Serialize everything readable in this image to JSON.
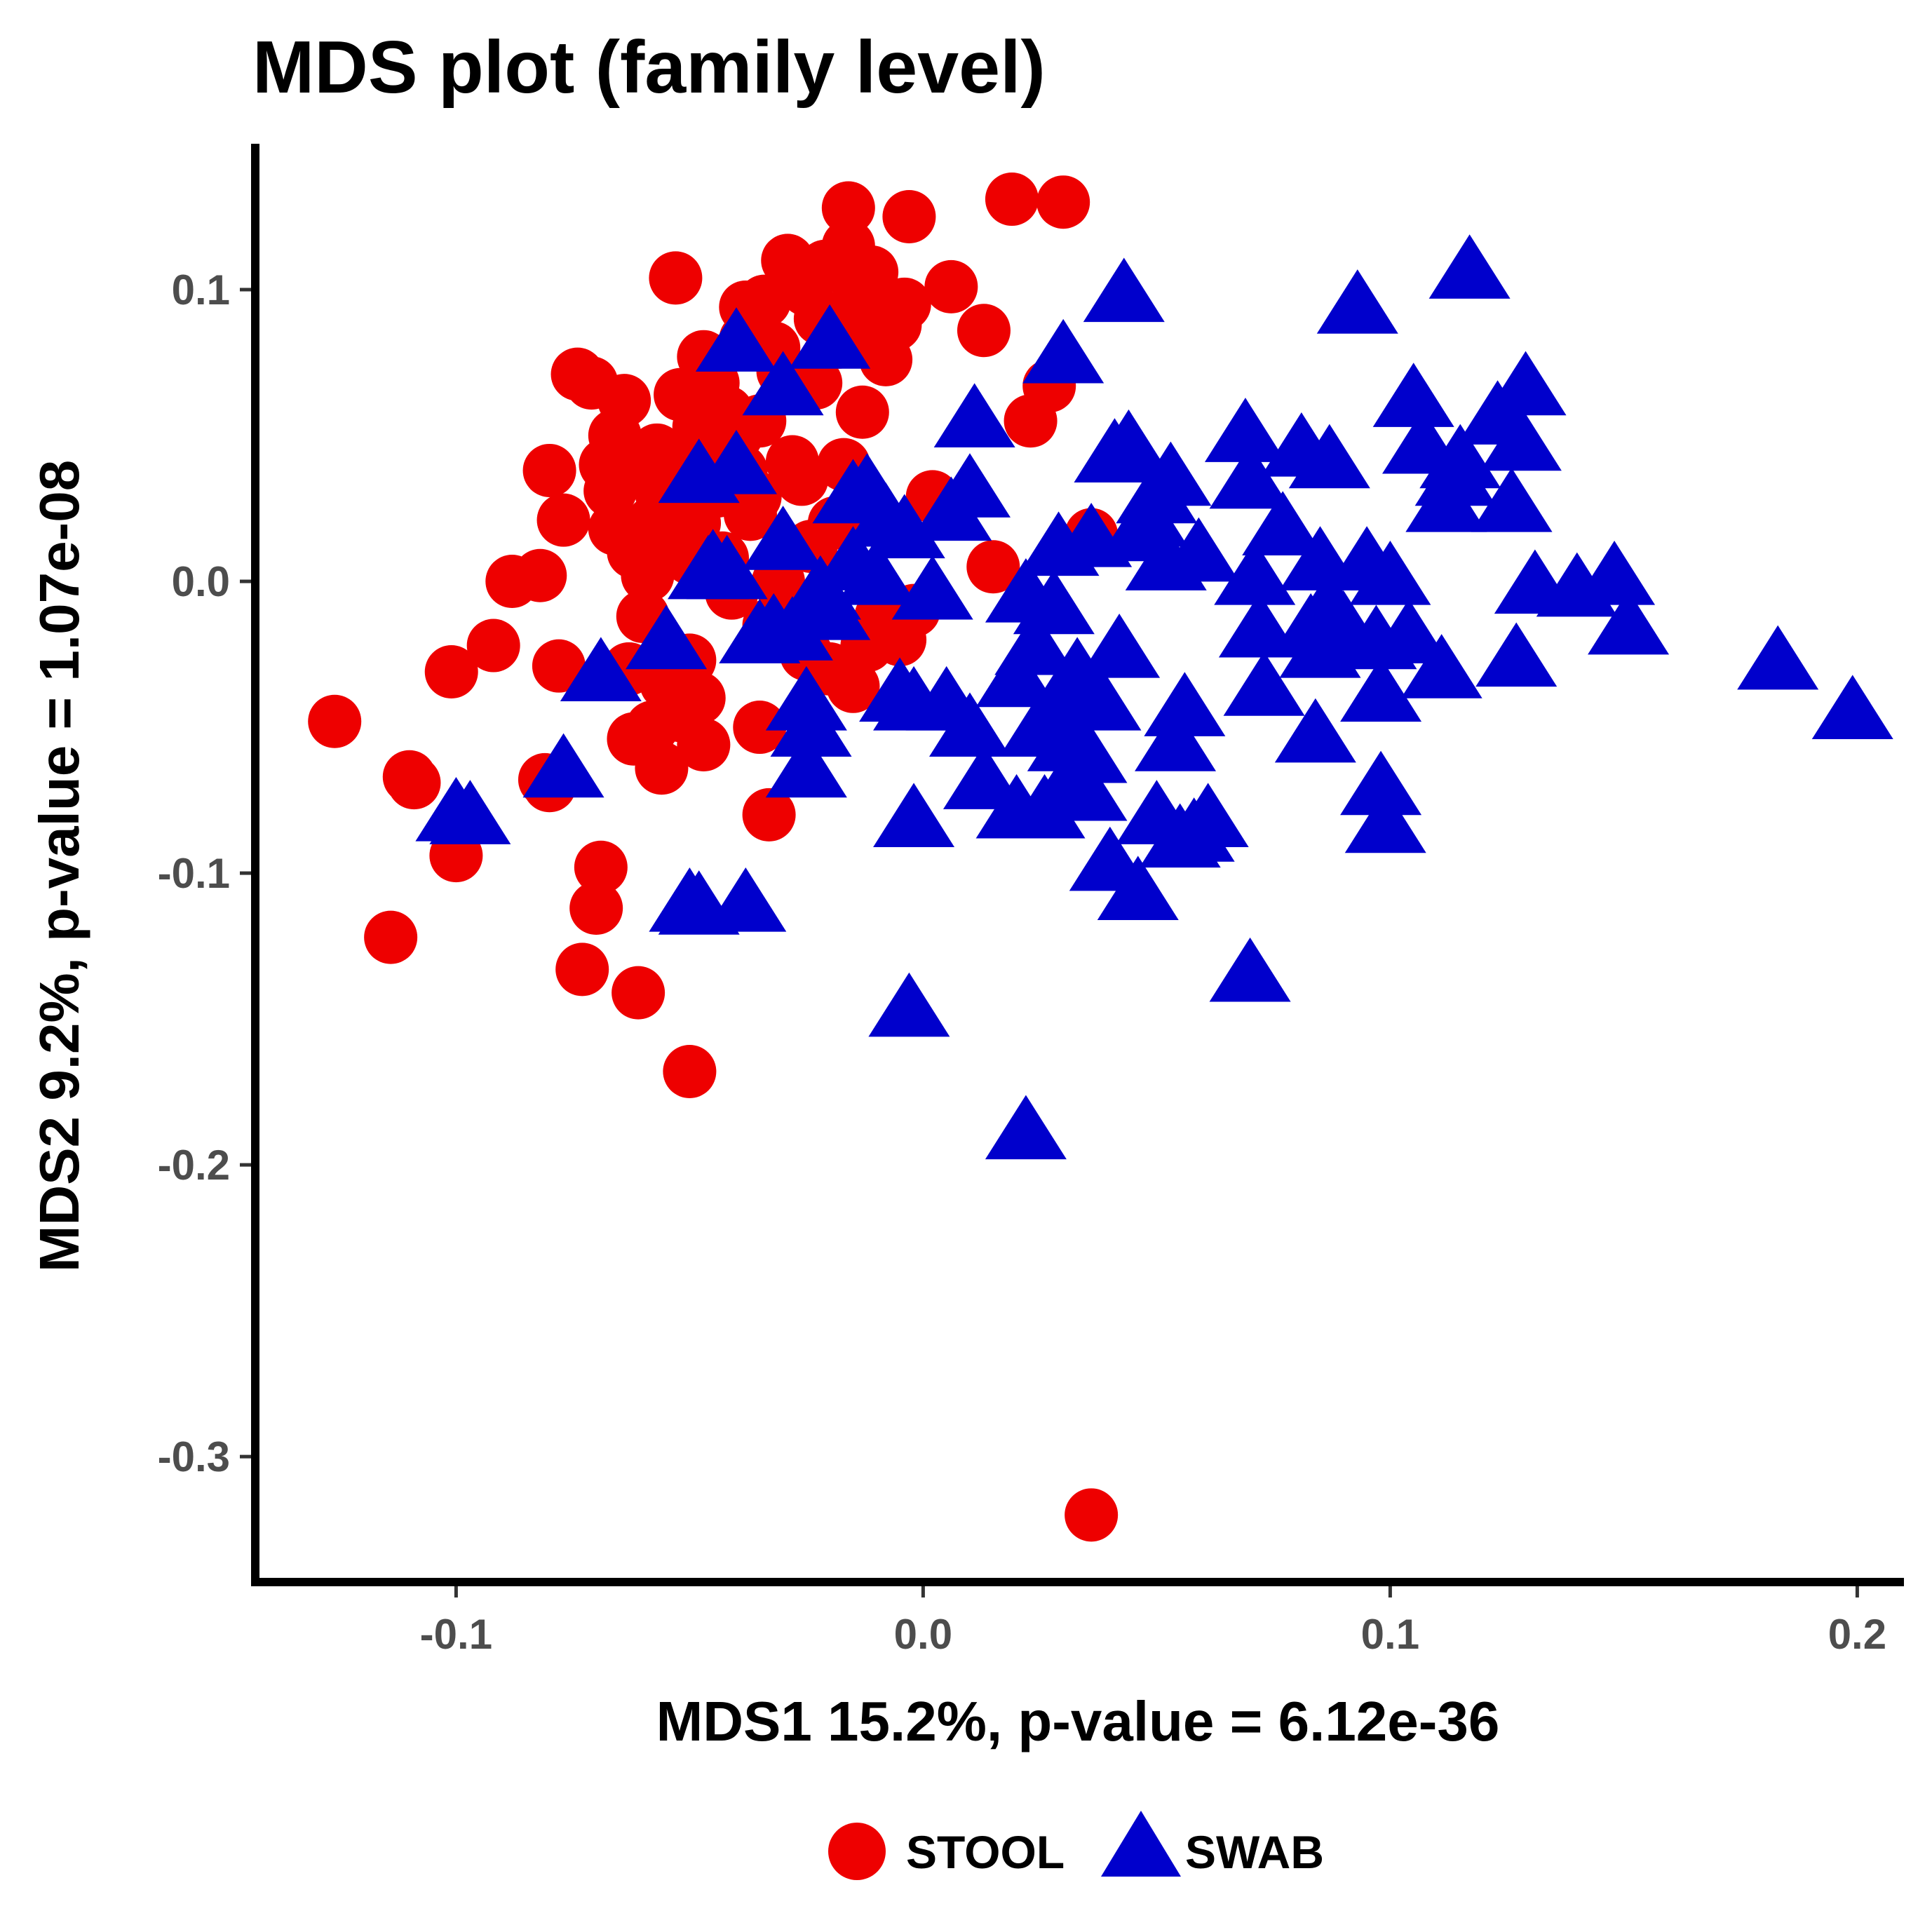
{
  "chart_data": {
    "type": "scatter",
    "title": "MDS plot (family level)",
    "xlabel": "MDS1 15.2%, p-value = 6.12e-36",
    "ylabel": "MDS2 9.2%, p-value = 1.07e-08",
    "xlim": [
      -0.143,
      0.21
    ],
    "ylim": [
      -0.343,
      0.15
    ],
    "x_ticks": [
      -0.1,
      0.0,
      0.1,
      0.2
    ],
    "x_tick_labels": [
      "-0.1",
      "0.0",
      "0.1",
      "0.2"
    ],
    "y_ticks": [
      -0.3,
      -0.2,
      -0.1,
      0.0,
      0.1
    ],
    "y_tick_labels": [
      "-0.3",
      "-0.2",
      "-0.1",
      "0.0",
      "0.1"
    ],
    "grid": false,
    "legend_position": "bottom",
    "series": [
      {
        "name": "STOOL",
        "shape": "circle",
        "color": "#ee0000",
        "points": [
          [
            -0.126,
            -0.048
          ],
          [
            -0.114,
            -0.122
          ],
          [
            -0.109,
            -0.069
          ],
          [
            -0.11,
            -0.067
          ],
          [
            -0.101,
            -0.031
          ],
          [
            -0.1,
            -0.094
          ],
          [
            -0.092,
            -0.022
          ],
          [
            -0.088,
            0.0
          ],
          [
            -0.082,
            0.002
          ],
          [
            -0.081,
            -0.068
          ],
          [
            -0.08,
            -0.07
          ],
          [
            -0.08,
            0.038
          ],
          [
            -0.078,
            -0.029
          ],
          [
            -0.077,
            0.021
          ],
          [
            -0.074,
            0.071
          ],
          [
            -0.073,
            -0.133
          ],
          [
            -0.071,
            0.068
          ],
          [
            -0.07,
            -0.112
          ],
          [
            -0.069,
            -0.098
          ],
          [
            -0.068,
            0.04
          ],
          [
            -0.067,
            0.031
          ],
          [
            -0.066,
            0.018
          ],
          [
            -0.066,
            0.05
          ],
          [
            -0.064,
            0.062
          ],
          [
            -0.063,
            -0.03
          ],
          [
            -0.062,
            -0.054
          ],
          [
            -0.062,
            0.01
          ],
          [
            -0.061,
            -0.141
          ],
          [
            -0.06,
            0.038
          ],
          [
            -0.06,
            -0.012
          ],
          [
            -0.059,
            0.002
          ],
          [
            -0.058,
            -0.05
          ],
          [
            -0.058,
            0.02
          ],
          [
            -0.057,
            0.045
          ],
          [
            -0.056,
            -0.064
          ],
          [
            -0.056,
            0.03
          ],
          [
            -0.055,
            -0.035
          ],
          [
            -0.054,
            0.012
          ],
          [
            -0.053,
            0.104
          ],
          [
            -0.052,
            -0.046
          ],
          [
            -0.052,
            0.064
          ],
          [
            -0.051,
            0.034
          ],
          [
            -0.05,
            -0.027
          ],
          [
            -0.05,
            0.008
          ],
          [
            -0.05,
            -0.168
          ],
          [
            -0.049,
            0.02
          ],
          [
            -0.048,
            -0.04
          ],
          [
            -0.048,
            0.053
          ],
          [
            -0.047,
            -0.056
          ],
          [
            -0.047,
            0.077
          ],
          [
            -0.046,
            0.046
          ],
          [
            -0.045,
            0.068
          ],
          [
            -0.044,
            0.031
          ],
          [
            -0.043,
            0.008
          ],
          [
            -0.042,
            0.058
          ],
          [
            -0.041,
            -0.004
          ],
          [
            -0.04,
            0.05
          ],
          [
            -0.039,
            0.038
          ],
          [
            -0.038,
            0.083
          ],
          [
            -0.038,
            0.094
          ],
          [
            -0.037,
            0.023
          ],
          [
            -0.036,
            0.029
          ],
          [
            -0.035,
            -0.05
          ],
          [
            -0.035,
            0.055
          ],
          [
            -0.034,
            0.096
          ],
          [
            -0.033,
            -0.08
          ],
          [
            -0.033,
            -0.015
          ],
          [
            -0.032,
            0.08
          ],
          [
            -0.031,
            0.0
          ],
          [
            -0.03,
            0.072
          ],
          [
            -0.029,
            0.11
          ],
          [
            -0.028,
            0.041
          ],
          [
            -0.027,
            -0.01
          ],
          [
            -0.026,
            0.035
          ],
          [
            -0.025,
            0.1
          ],
          [
            -0.025,
            -0.025
          ],
          [
            -0.024,
            0.012
          ],
          [
            -0.023,
            0.068
          ],
          [
            -0.022,
            0.09
          ],
          [
            -0.021,
            0.108
          ],
          [
            -0.02,
            -0.03
          ],
          [
            -0.019,
            0.02
          ],
          [
            -0.018,
            0.082
          ],
          [
            -0.017,
            0.04
          ],
          [
            -0.016,
            0.128
          ],
          [
            -0.016,
            0.115
          ],
          [
            -0.015,
            -0.036
          ],
          [
            -0.014,
            0.096
          ],
          [
            -0.013,
            0.058
          ],
          [
            -0.012,
            -0.022
          ],
          [
            -0.011,
            0.106
          ],
          [
            -0.01,
            0.085
          ],
          [
            -0.009,
            -0.012
          ],
          [
            -0.008,
            0.076
          ],
          [
            -0.007,
            0.095
          ],
          [
            -0.006,
            0.088
          ],
          [
            -0.005,
            -0.02
          ],
          [
            -0.004,
            0.095
          ],
          [
            -0.003,
            0.125
          ],
          [
            -0.002,
            -0.01
          ],
          [
            0.002,
            0.029
          ],
          [
            0.006,
            0.101
          ],
          [
            0.013,
            0.086
          ],
          [
            0.015,
            0.005
          ],
          [
            0.019,
            0.131
          ],
          [
            0.023,
            0.055
          ],
          [
            0.027,
            0.067
          ],
          [
            0.03,
            0.13
          ],
          [
            0.036,
            0.016
          ],
          [
            0.036,
            -0.32
          ]
        ]
      },
      {
        "name": "SWAB",
        "shape": "triangle",
        "color": "#0000cc",
        "points": [
          [
            -0.1,
            -0.081
          ],
          [
            -0.097,
            -0.082
          ],
          [
            -0.077,
            -0.066
          ],
          [
            -0.069,
            -0.033
          ],
          [
            -0.055,
            -0.022
          ],
          [
            -0.05,
            -0.112
          ],
          [
            -0.048,
            -0.113
          ],
          [
            -0.048,
            0.035
          ],
          [
            -0.046,
            0.002
          ],
          [
            -0.045,
            0.004
          ],
          [
            -0.042,
            0.002
          ],
          [
            -0.04,
            0.08
          ],
          [
            -0.04,
            0.038
          ],
          [
            -0.038,
            -0.112
          ],
          [
            -0.035,
            -0.02
          ],
          [
            -0.032,
            -0.018
          ],
          [
            -0.03,
            0.065
          ],
          [
            -0.03,
            0.012
          ],
          [
            -0.028,
            -0.019
          ],
          [
            -0.025,
            -0.066
          ],
          [
            -0.025,
            -0.043
          ],
          [
            -0.024,
            -0.052
          ],
          [
            -0.022,
            -0.005
          ],
          [
            -0.02,
            0.081
          ],
          [
            -0.02,
            -0.012
          ],
          [
            -0.015,
            0.005
          ],
          [
            -0.015,
            0.028
          ],
          [
            -0.012,
            0.03
          ],
          [
            -0.01,
            0.0
          ],
          [
            -0.008,
            0.02
          ],
          [
            -0.005,
            -0.04
          ],
          [
            -0.004,
            0.016
          ],
          [
            -0.002,
            -0.043
          ],
          [
            -0.002,
            -0.083
          ],
          [
            -0.003,
            -0.148
          ],
          [
            0.002,
            -0.005
          ],
          [
            0.005,
            -0.043
          ],
          [
            0.006,
            0.022
          ],
          [
            0.01,
            -0.052
          ],
          [
            0.01,
            0.03
          ],
          [
            0.011,
            0.054
          ],
          [
            0.013,
            -0.07
          ],
          [
            0.02,
            -0.035
          ],
          [
            0.02,
            -0.08
          ],
          [
            0.022,
            -0.006
          ],
          [
            0.022,
            -0.19
          ],
          [
            0.024,
            -0.024
          ],
          [
            0.025,
            -0.052
          ],
          [
            0.026,
            -0.08
          ],
          [
            0.028,
            -0.01
          ],
          [
            0.029,
            0.01
          ],
          [
            0.03,
            0.076
          ],
          [
            0.03,
            -0.042
          ],
          [
            0.031,
            -0.057
          ],
          [
            0.032,
            -0.07
          ],
          [
            0.033,
            -0.033
          ],
          [
            0.035,
            -0.074
          ],
          [
            0.035,
            -0.061
          ],
          [
            0.036,
            0.013
          ],
          [
            0.038,
            -0.043
          ],
          [
            0.04,
            -0.098
          ],
          [
            0.041,
            0.042
          ],
          [
            0.042,
            -0.025
          ],
          [
            0.043,
            0.097
          ],
          [
            0.044,
            0.045
          ],
          [
            0.046,
            0.015
          ],
          [
            0.046,
            -0.108
          ],
          [
            0.048,
            0.02
          ],
          [
            0.05,
            0.028
          ],
          [
            0.05,
            -0.082
          ],
          [
            0.052,
            0.005
          ],
          [
            0.053,
            0.034
          ],
          [
            0.054,
            -0.057
          ],
          [
            0.055,
            -0.09
          ],
          [
            0.056,
            -0.045
          ],
          [
            0.058,
            -0.088
          ],
          [
            0.059,
            0.008
          ],
          [
            0.061,
            -0.083
          ],
          [
            0.069,
            0.049
          ],
          [
            0.07,
            0.033
          ],
          [
            0.07,
            -0.136
          ],
          [
            0.071,
            0.0
          ],
          [
            0.072,
            -0.018
          ],
          [
            0.073,
            -0.038
          ],
          [
            0.077,
            0.017
          ],
          [
            0.081,
            0.044
          ],
          [
            0.083,
            -0.018
          ],
          [
            0.084,
            -0.054
          ],
          [
            0.085,
            0.005
          ],
          [
            0.085,
            -0.025
          ],
          [
            0.087,
            0.04
          ],
          [
            0.087,
            -0.01
          ],
          [
            0.09,
            -0.017
          ],
          [
            0.093,
            0.093
          ],
          [
            0.095,
            0.005
          ],
          [
            0.097,
            -0.022
          ],
          [
            0.098,
            -0.04
          ],
          [
            0.098,
            -0.072
          ],
          [
            0.099,
            -0.085
          ],
          [
            0.1,
            0.0
          ],
          [
            0.104,
            -0.02
          ],
          [
            0.105,
            0.061
          ],
          [
            0.107,
            0.045
          ],
          [
            0.111,
            -0.032
          ],
          [
            0.112,
            0.025
          ],
          [
            0.114,
            0.034
          ],
          [
            0.115,
            0.04
          ],
          [
            0.117,
            0.105
          ],
          [
            0.123,
            0.055
          ],
          [
            0.126,
            0.025
          ],
          [
            0.127,
            -0.028
          ],
          [
            0.128,
            0.046
          ],
          [
            0.129,
            0.065
          ],
          [
            0.131,
            -0.003
          ],
          [
            0.14,
            -0.004
          ],
          [
            0.148,
            0.0
          ],
          [
            0.151,
            -0.017
          ],
          [
            0.183,
            -0.029
          ],
          [
            0.199,
            -0.046
          ]
        ]
      }
    ]
  }
}
